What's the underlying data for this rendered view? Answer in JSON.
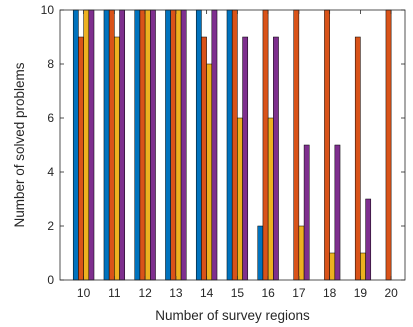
{
  "chart_data": {
    "type": "bar",
    "xlabel": "Number of survey regions",
    "ylabel": "Number of solved problems",
    "ylim": [
      0,
      10
    ],
    "yticks": [
      0,
      2,
      4,
      6,
      8,
      10
    ],
    "categories": [
      "10",
      "11",
      "12",
      "13",
      "14",
      "15",
      "16",
      "17",
      "18",
      "19",
      "20"
    ],
    "grid": false,
    "series": [
      {
        "color": "#0072BD",
        "values": [
          10,
          10,
          10,
          10,
          10,
          10,
          2,
          0,
          0,
          0,
          0
        ]
      },
      {
        "color": "#D95319",
        "values": [
          9,
          10,
          10,
          10,
          9,
          10,
          10,
          10,
          10,
          9,
          10
        ]
      },
      {
        "color": "#EDB120",
        "values": [
          10,
          9,
          10,
          10,
          8,
          6,
          6,
          2,
          1,
          1,
          0
        ]
      },
      {
        "color": "#7E2F8E",
        "values": [
          10,
          10,
          10,
          10,
          10,
          9,
          9,
          5,
          5,
          3,
          0
        ]
      }
    ]
  }
}
